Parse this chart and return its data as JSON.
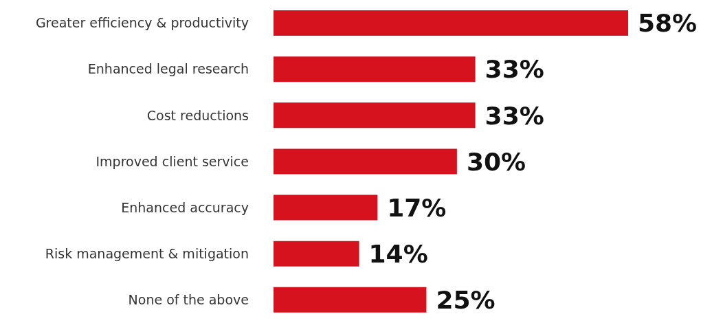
{
  "chart_data": {
    "type": "bar",
    "orientation": "horizontal",
    "categories": [
      "Greater efficiency & productivity",
      "Enhanced legal research",
      "Cost reductions",
      "Improved client service",
      "Enhanced accuracy",
      "Risk management & mitigation",
      "None of the above"
    ],
    "values": [
      58,
      33,
      33,
      30,
      17,
      14,
      25
    ],
    "value_labels": [
      "58%",
      "33%",
      "33%",
      "30%",
      "17%",
      "14%",
      "25%"
    ],
    "color": "#d7121f"
  }
}
